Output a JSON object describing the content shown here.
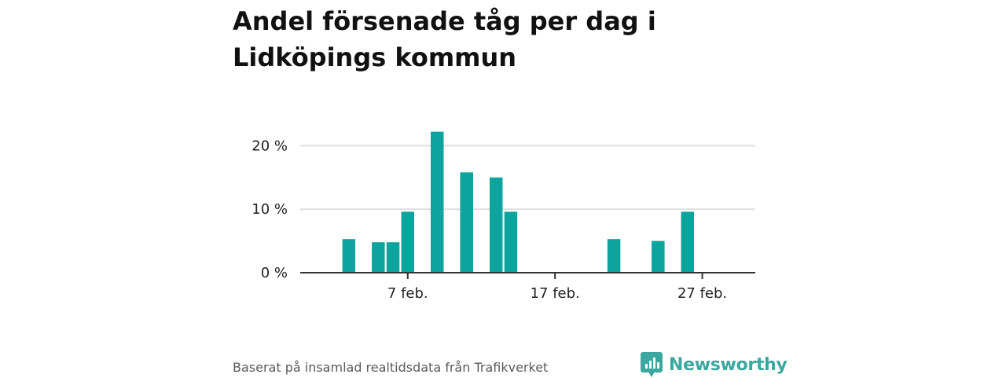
{
  "title": "Andel försenade tåg per dag i Lidköpings kommun",
  "source_text": "Baserat på insamlad realtidsdata från Trafikverket",
  "brand": {
    "name": "Newsworthy",
    "icon": "newsworthy-logo-icon",
    "color": "#3aa89e"
  },
  "chart_data": {
    "type": "bar",
    "title": "Andel försenade tåg per dag i Lidköpings kommun",
    "xlabel": "",
    "ylabel": "",
    "bar_color": "#0ca49c",
    "grid": true,
    "ylim": [
      0,
      25
    ],
    "yticks": [
      {
        "value": 0,
        "label": "0 %"
      },
      {
        "value": 10,
        "label": "10 %"
      },
      {
        "value": 20,
        "label": "20 %"
      }
    ],
    "xticks": [
      {
        "day": 7,
        "label": "7 feb."
      },
      {
        "day": 17,
        "label": "17 feb."
      },
      {
        "day": 27,
        "label": "27 feb."
      }
    ],
    "xlim_days": [
      -0.3,
      30.6
    ],
    "days": [
      1,
      2,
      3,
      4,
      5,
      6,
      7,
      8,
      9,
      10,
      11,
      12,
      13,
      14,
      15,
      16,
      17,
      18,
      19,
      20,
      21,
      22,
      23,
      24,
      25,
      26,
      27,
      28
    ],
    "values": [
      0,
      0,
      5.3,
      0,
      4.8,
      4.8,
      9.6,
      0,
      22.2,
      0,
      15.8,
      0,
      15.0,
      9.6,
      0,
      0,
      0,
      0,
      0,
      0,
      5.3,
      0,
      0,
      5.0,
      0,
      9.6,
      0,
      0
    ]
  }
}
